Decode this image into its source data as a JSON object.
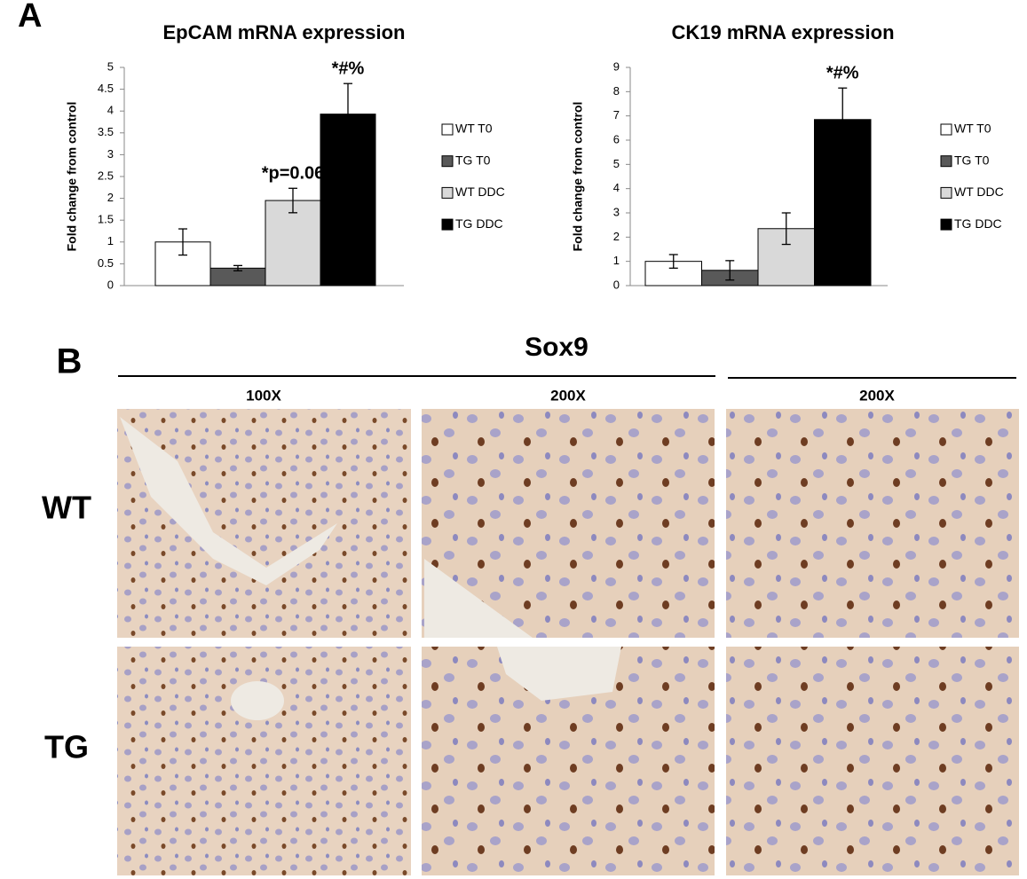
{
  "panel_a_label": "A",
  "chart_data": [
    {
      "type": "bar",
      "title": "EpCAM mRNA expression",
      "y_label": "Fold change from control",
      "ylim": [
        0,
        5
      ],
      "yticks": [
        0,
        0.5,
        1,
        1.5,
        2,
        2.5,
        3,
        3.5,
        4,
        4.5,
        5
      ],
      "series": [
        {
          "name": "WT T0",
          "color": "#ffffff",
          "values": [
            1.0
          ],
          "errors": [
            0.3
          ]
        },
        {
          "name": "TG T0",
          "color": "#595959",
          "values": [
            0.4
          ],
          "errors": [
            0.06
          ]
        },
        {
          "name": "WT DDC",
          "color": "#d9d9d9",
          "values": [
            1.95
          ],
          "errors": [
            0.28
          ],
          "annotation": "*p=0.06"
        },
        {
          "name": "TG DDC",
          "color": "#000000",
          "values": [
            3.93
          ],
          "errors": [
            0.7
          ],
          "annotation": "*#%"
        }
      ]
    },
    {
      "type": "bar",
      "title": "CK19 mRNA expression",
      "y_label": "Fold change from control",
      "ylim": [
        0,
        9
      ],
      "yticks": [
        0,
        1,
        2,
        3,
        4,
        5,
        6,
        7,
        8,
        9
      ],
      "series": [
        {
          "name": "WT T0",
          "color": "#ffffff",
          "values": [
            1.0
          ],
          "errors": [
            0.28
          ]
        },
        {
          "name": "TG T0",
          "color": "#595959",
          "values": [
            0.63
          ],
          "errors": [
            0.4
          ]
        },
        {
          "name": "WT DDC",
          "color": "#d9d9d9",
          "values": [
            2.35
          ],
          "errors": [
            0.65
          ]
        },
        {
          "name": "TG DDC",
          "color": "#000000",
          "values": [
            6.85
          ],
          "errors": [
            1.3
          ],
          "annotation": "*#%"
        }
      ]
    }
  ],
  "panel_b": {
    "label": "B",
    "title": "Sox9",
    "columns": [
      "100X",
      "200X",
      "200X"
    ],
    "rows": [
      "WT",
      "TG"
    ]
  }
}
